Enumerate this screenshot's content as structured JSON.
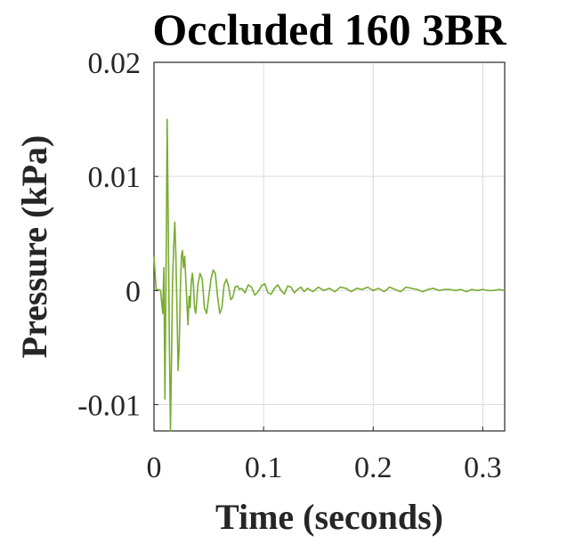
{
  "chart_data": {
    "type": "line",
    "title": "Occluded 160 3BR",
    "xlabel": "Time (seconds)",
    "ylabel": "Pressure (kPa)",
    "xlim": [
      0,
      0.32
    ],
    "ylim": [
      -0.0123,
      0.02
    ],
    "xticks": [
      0,
      0.1,
      0.2,
      0.3
    ],
    "xtick_labels": [
      "0",
      "0.1",
      "0.2",
      "0.3"
    ],
    "yticks": [
      -0.01,
      0,
      0.01,
      0.02
    ],
    "ytick_labels": [
      "-0.01",
      "0",
      "0.01",
      "0.02"
    ],
    "grid": true,
    "legend": "none",
    "color": "#77ac30",
    "series": [
      {
        "x": [
          0,
          0.002,
          0.004,
          0.006,
          0.008,
          0.009,
          0.01,
          0.011,
          0.012,
          0.013,
          0.014,
          0.015,
          0.016,
          0.017,
          0.018,
          0.019,
          0.02,
          0.021,
          0.022,
          0.023,
          0.024,
          0.025,
          0.026,
          0.027,
          0.028,
          0.029,
          0.03,
          0.031,
          0.032,
          0.033,
          0.034,
          0.035,
          0.036,
          0.037,
          0.038,
          0.039,
          0.04,
          0.042,
          0.044,
          0.046,
          0.048,
          0.05,
          0.052,
          0.054,
          0.056,
          0.058,
          0.06,
          0.062,
          0.064,
          0.066,
          0.068,
          0.07,
          0.072,
          0.074,
          0.076,
          0.078,
          0.08,
          0.083,
          0.086,
          0.089,
          0.092,
          0.095,
          0.098,
          0.101,
          0.104,
          0.107,
          0.11,
          0.113,
          0.116,
          0.119,
          0.122,
          0.125,
          0.128,
          0.131,
          0.134,
          0.137,
          0.14,
          0.145,
          0.15,
          0.155,
          0.16,
          0.165,
          0.17,
          0.175,
          0.18,
          0.185,
          0.19,
          0.195,
          0.2,
          0.205,
          0.21,
          0.215,
          0.22,
          0.225,
          0.23,
          0.235,
          0.24,
          0.245,
          0.25,
          0.255,
          0.26,
          0.265,
          0.27,
          0.275,
          0.28,
          0.285,
          0.29,
          0.295,
          0.3,
          0.305,
          0.31,
          0.315,
          0.32
        ],
        "y": [
          0.003,
          0.0,
          0.0001,
          0.0,
          -0.002,
          0.002,
          -0.0095,
          0.001,
          0.015,
          0.006,
          -0.004,
          -0.0125,
          -0.006,
          0.001,
          0.004,
          0.006,
          0.003,
          -0.002,
          -0.007,
          -0.005,
          0.0,
          0.003,
          0.0035,
          0.002,
          0.003,
          0.001,
          -0.001,
          -0.003,
          -0.0005,
          -0.0015,
          0.0008,
          0.0015,
          0.0005,
          -0.0015,
          -0.002,
          -0.001,
          0.0005,
          0.0015,
          0.001,
          -0.0015,
          -0.002,
          -0.0005,
          0.001,
          0.0018,
          0.0015,
          -0.0005,
          -0.002,
          -0.0015,
          0.0005,
          0.001,
          0.0004,
          -0.0008,
          -0.0006,
          0.0003,
          0.0004,
          0.0001,
          0.0002,
          -0.0002,
          0.0005,
          0.0003,
          -0.0004,
          -0.0001,
          0.0004,
          0.0006,
          -0.0002,
          -0.0003,
          0.0002,
          0.0005,
          0.0,
          -0.0003,
          0.0004,
          0.0003,
          -0.0002,
          0.0001,
          0.0003,
          -0.0001,
          0.0002,
          -0.0001,
          0.0003,
          0.0,
          0.0002,
          -0.0001,
          0.0003,
          0.0002,
          -0.0001,
          0.0002,
          0.0001,
          0.0003,
          0.0,
          0.0002,
          -0.0001,
          0.0003,
          0.0001,
          -0.0001,
          0.0003,
          0.0002,
          0.0001,
          -0.0001,
          0.0001,
          0.0002,
          0.0,
          0.0001,
          0.0001,
          0.0,
          0.0001,
          -0.0001,
          0.0001,
          0.0,
          0.0001,
          0.0,
          0.0,
          0.0001,
          0.0
        ]
      }
    ]
  }
}
